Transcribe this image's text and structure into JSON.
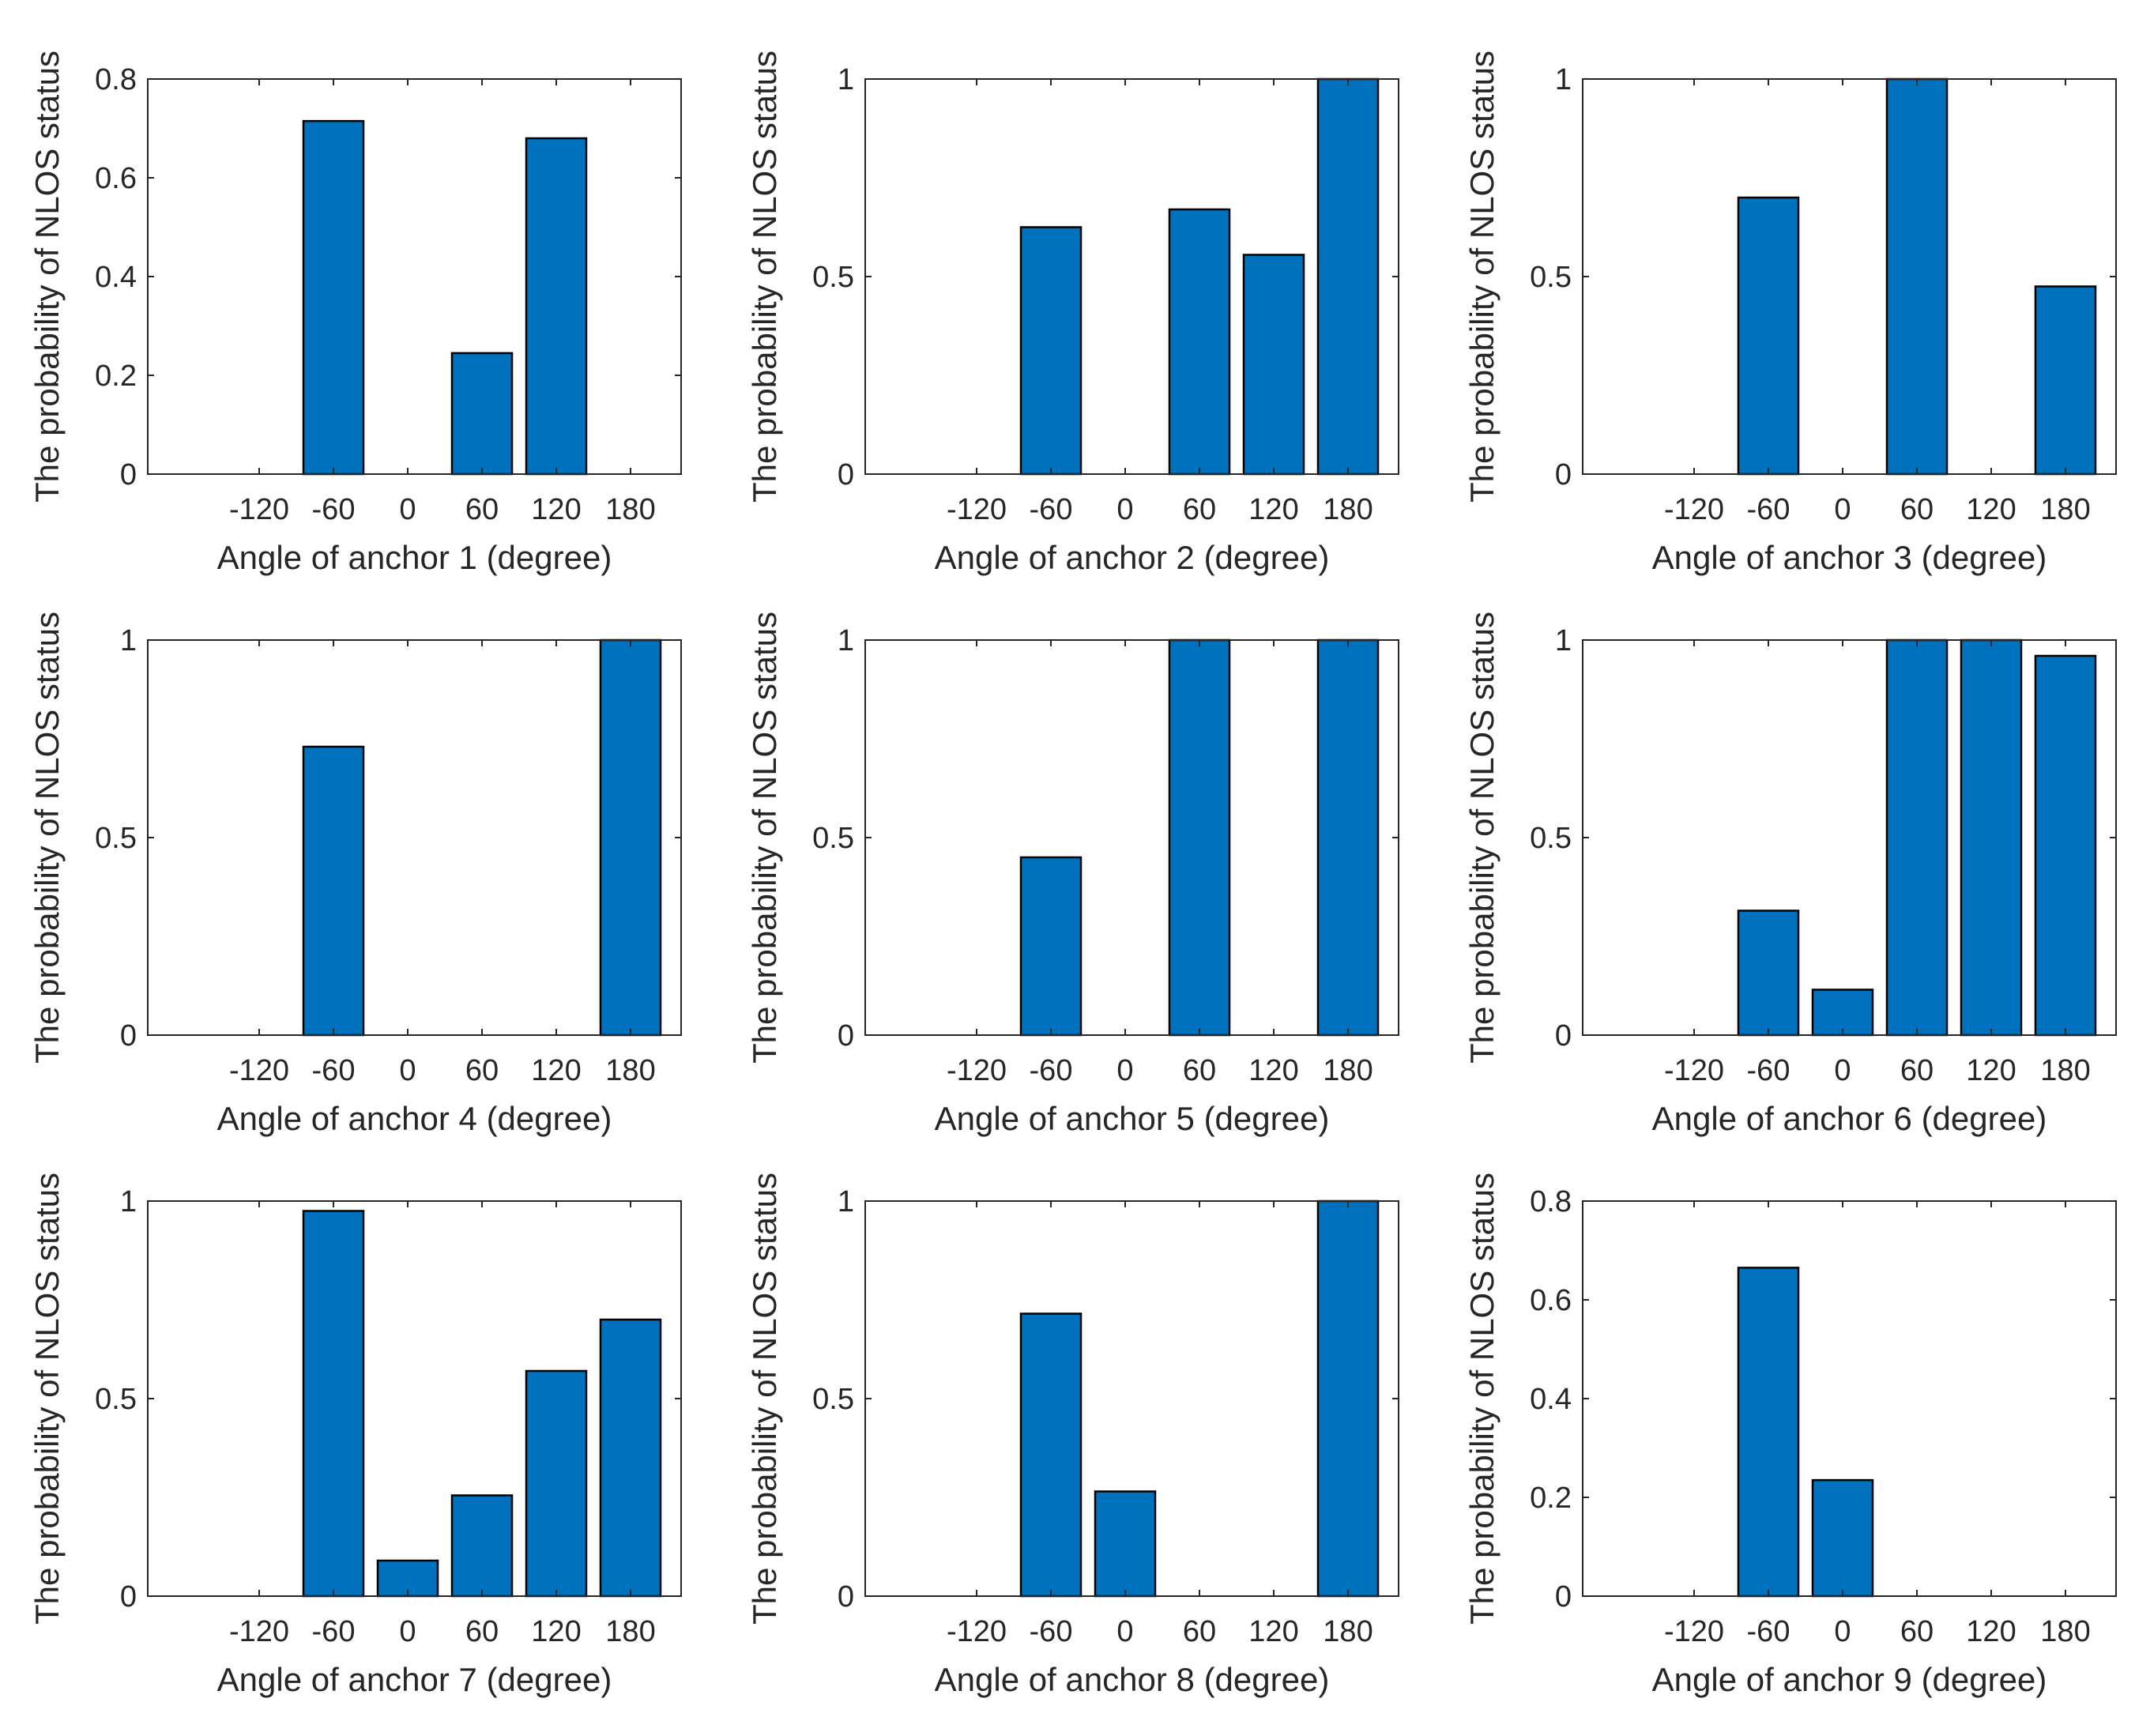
{
  "chart_data": [
    {
      "type": "bar",
      "title": "",
      "xlabel": "Angle of anchor 1 (degree)",
      "ylabel": "The probability of NLOS status",
      "categories": [
        "-120",
        "-60",
        "0",
        "60",
        "120",
        "180"
      ],
      "values": [
        0,
        0.715,
        0,
        0.245,
        0.68,
        0
      ],
      "ylim": [
        0,
        0.8
      ],
      "yticks": [
        "0",
        "0.2",
        "0.4",
        "0.6",
        "0.8"
      ],
      "ytick_values": [
        0,
        0.2,
        0.4,
        0.6,
        0.8
      ],
      "bar_color": "#0072BD"
    },
    {
      "type": "bar",
      "title": "",
      "xlabel": "Angle of anchor 2 (degree)",
      "ylabel": "The probability of NLOS status",
      "categories": [
        "-120",
        "-60",
        "0",
        "60",
        "120",
        "180"
      ],
      "values": [
        0,
        0.625,
        0,
        0.67,
        0.555,
        1.0
      ],
      "ylim": [
        0,
        1
      ],
      "yticks": [
        "0",
        "0.5",
        "1"
      ],
      "ytick_values": [
        0,
        0.5,
        1
      ],
      "bar_color": "#0072BD"
    },
    {
      "type": "bar",
      "title": "",
      "xlabel": "Angle of anchor 3 (degree)",
      "ylabel": "The probability of NLOS status",
      "categories": [
        "-120",
        "-60",
        "0",
        "60",
        "120",
        "180"
      ],
      "values": [
        0,
        0.7,
        0,
        1.0,
        0,
        0.475
      ],
      "ylim": [
        0,
        1
      ],
      "yticks": [
        "0",
        "0.5",
        "1"
      ],
      "ytick_values": [
        0,
        0.5,
        1
      ],
      "bar_color": "#0072BD"
    },
    {
      "type": "bar",
      "title": "",
      "xlabel": "Angle of anchor 4 (degree)",
      "ylabel": "The probability of NLOS status",
      "categories": [
        "-120",
        "-60",
        "0",
        "60",
        "120",
        "180"
      ],
      "values": [
        0,
        0.73,
        0,
        0,
        0,
        1.0
      ],
      "ylim": [
        0,
        1
      ],
      "yticks": [
        "0",
        "0.5",
        "1"
      ],
      "ytick_values": [
        0,
        0.5,
        1
      ],
      "bar_color": "#0072BD"
    },
    {
      "type": "bar",
      "title": "",
      "xlabel": "Angle of anchor 5 (degree)",
      "ylabel": "The probability of NLOS status",
      "categories": [
        "-120",
        "-60",
        "0",
        "60",
        "120",
        "180"
      ],
      "values": [
        0,
        0.45,
        0,
        1.0,
        0,
        1.0
      ],
      "ylim": [
        0,
        1
      ],
      "yticks": [
        "0",
        "0.5",
        "1"
      ],
      "ytick_values": [
        0,
        0.5,
        1
      ],
      "bar_color": "#0072BD"
    },
    {
      "type": "bar",
      "title": "",
      "xlabel": "Angle of anchor 6 (degree)",
      "ylabel": "The probability of NLOS status",
      "categories": [
        "-120",
        "-60",
        "0",
        "60",
        "120",
        "180"
      ],
      "values": [
        0,
        0.315,
        0.115,
        1.0,
        1.0,
        0.96
      ],
      "ylim": [
        0,
        1
      ],
      "yticks": [
        "0",
        "0.5",
        "1"
      ],
      "ytick_values": [
        0,
        0.5,
        1
      ],
      "bar_color": "#0072BD"
    },
    {
      "type": "bar",
      "title": "",
      "xlabel": "Angle of anchor 7 (degree)",
      "ylabel": "The probability of NLOS status",
      "categories": [
        "-120",
        "-60",
        "0",
        "60",
        "120",
        "180"
      ],
      "values": [
        0,
        0.975,
        0.09,
        0.255,
        0.57,
        0.7
      ],
      "ylim": [
        0,
        1
      ],
      "yticks": [
        "0",
        "0.5",
        "1"
      ],
      "ytick_values": [
        0,
        0.5,
        1
      ],
      "bar_color": "#0072BD"
    },
    {
      "type": "bar",
      "title": "",
      "xlabel": "Angle of anchor 8 (degree)",
      "ylabel": "The probability of NLOS status",
      "categories": [
        "-120",
        "-60",
        "0",
        "60",
        "120",
        "180"
      ],
      "values": [
        0,
        0.715,
        0.265,
        0,
        0,
        1.0
      ],
      "ylim": [
        0,
        1
      ],
      "yticks": [
        "0",
        "0.5",
        "1"
      ],
      "ytick_values": [
        0,
        0.5,
        1
      ],
      "bar_color": "#0072BD"
    },
    {
      "type": "bar",
      "title": "",
      "xlabel": "Angle of anchor 9 (degree)",
      "ylabel": "The probability of NLOS status",
      "categories": [
        "-120",
        "-60",
        "0",
        "60",
        "120",
        "180"
      ],
      "values": [
        0,
        0.665,
        0.235,
        0,
        0,
        0
      ],
      "ylim": [
        0,
        0.8
      ],
      "yticks": [
        "0",
        "0.2",
        "0.4",
        "0.6",
        "0.8"
      ],
      "ytick_values": [
        0,
        0.2,
        0.4,
        0.6,
        0.8
      ],
      "bar_color": "#0072BD"
    }
  ]
}
